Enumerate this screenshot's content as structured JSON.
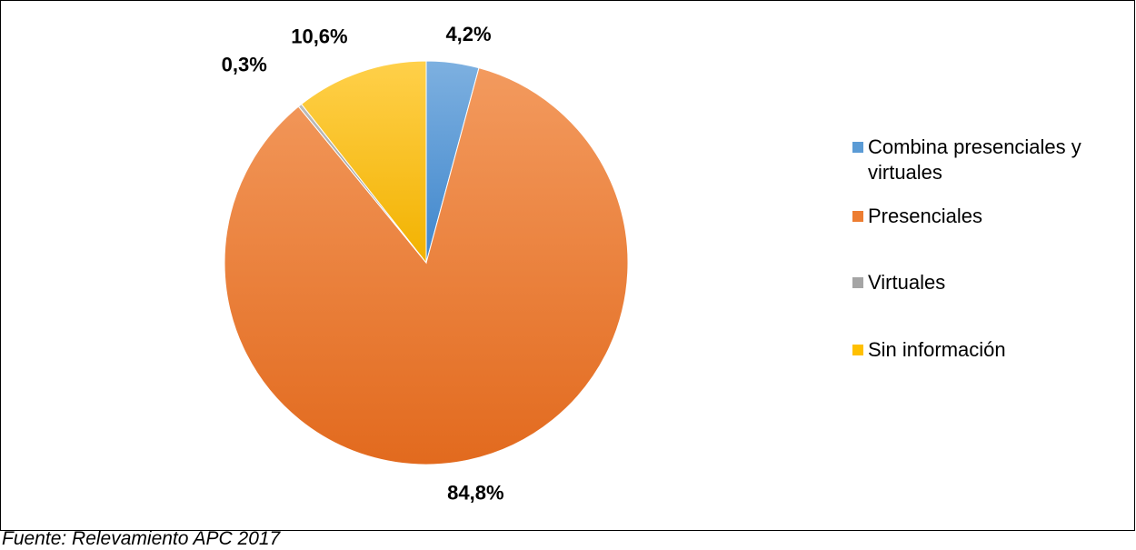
{
  "chart_data": {
    "type": "pie",
    "categories": [
      "Combina presenciales y virtuales",
      "Presenciales",
      "Virtuales",
      "Sin información"
    ],
    "values": [
      4.2,
      84.8,
      0.3,
      10.6
    ],
    "data_labels": [
      "4,2%",
      "84,8%",
      "0,3%",
      "10,6%"
    ],
    "colors": [
      "#5B9BD5",
      "#ED7D31",
      "#A5A5A5",
      "#FFC000"
    ],
    "start_angle_deg": 0,
    "direction": "clockwise",
    "legend_position": "right"
  },
  "legend": {
    "items": [
      {
        "label": "Combina presenciales y virtuales",
        "color": "#5B9BD5"
      },
      {
        "label": "Presenciales",
        "color": "#ED7D31"
      },
      {
        "label": "Virtuales",
        "color": "#A5A5A5"
      },
      {
        "label": "Sin información",
        "color": "#FFC000"
      }
    ]
  },
  "source_note": "Fuente: Relevamiento APC 2017"
}
